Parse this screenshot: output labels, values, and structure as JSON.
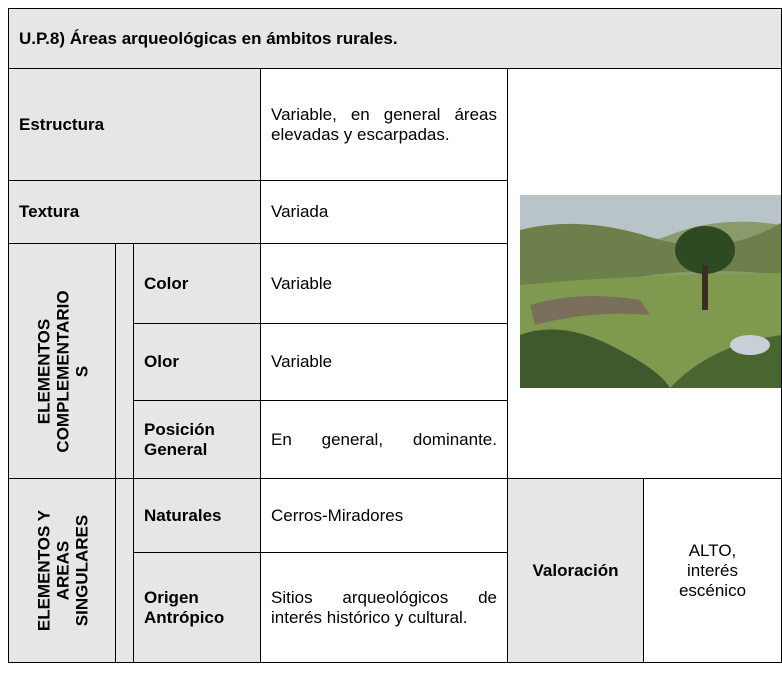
{
  "title": "U.P.8) Áreas arqueológicas en ámbitos rurales.",
  "rows": [
    {
      "label": "Estructura",
      "value": "Variable, en general áreas elevadas y escarpadas."
    },
    {
      "label": "Textura",
      "value": "Variada"
    }
  ],
  "groups": [
    {
      "label_lines": [
        "ELEMENTOS",
        "COMPLEMENTARIO",
        "S"
      ],
      "rows": [
        {
          "label": "Color",
          "value": "Variable"
        },
        {
          "label": "Olor",
          "value": "Variable"
        },
        {
          "label": "Posición General",
          "value": "En general, dominante."
        }
      ]
    },
    {
      "label_lines": [
        "ELEMENTOS Y",
        "AREAS",
        "SINGULARES"
      ],
      "rows": [
        {
          "label": "Naturales",
          "value": "Cerros-Miradores"
        },
        {
          "label": "Origen Antrópico",
          "value": "Sitios arqueológicos de interés histórico y cultural."
        }
      ]
    }
  ],
  "valuation": {
    "label": "Valoración",
    "value": "ALTO, interés escénico"
  }
}
